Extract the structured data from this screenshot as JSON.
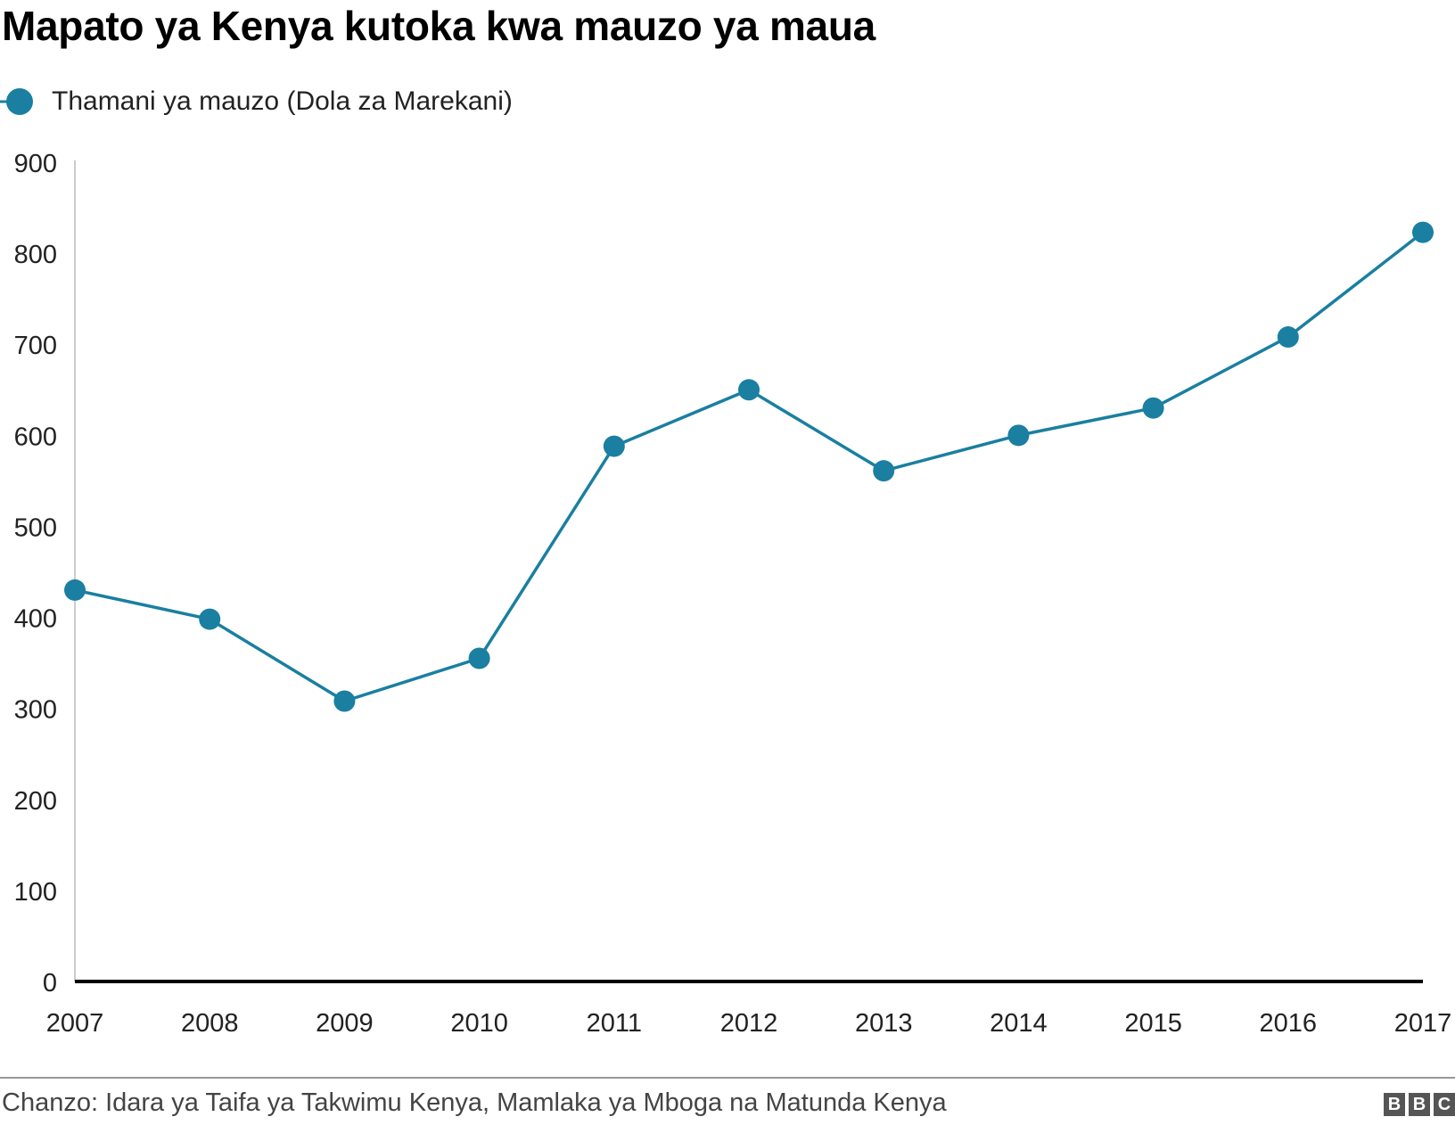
{
  "title": "Mapato ya Kenya kutoka kwa mauzo ya maua",
  "legend": {
    "label": "Thamani ya mauzo (Dola za Marekani)"
  },
  "source": "Chanzo: Idara ya Taifa ya Takwimu Kenya, Mamlaka ya Mboga na Matunda Kenya",
  "logo_letters": [
    "B",
    "B",
    "C"
  ],
  "colors": {
    "series": "#1a7fa0",
    "axis": "#000000",
    "tick_text": "#222222"
  },
  "chart_data": {
    "type": "line",
    "title": "Mapato ya Kenya kutoka kwa mauzo ya maua",
    "xlabel": "",
    "ylabel": "",
    "x": [
      "2007",
      "2008",
      "2009",
      "2010",
      "2011",
      "2012",
      "2013",
      "2014",
      "2015",
      "2016",
      "2017"
    ],
    "series": [
      {
        "name": "Thamani ya mauzo (Dola za Marekani)",
        "values": [
          430,
          398,
          308,
          355,
          588,
          650,
          561,
          600,
          630,
          708,
          823
        ]
      }
    ],
    "ylim": [
      0,
      900
    ],
    "yticks": [
      0,
      100,
      200,
      300,
      400,
      500,
      600,
      700,
      800,
      900
    ],
    "grid": false,
    "legend_position": "top-left"
  }
}
